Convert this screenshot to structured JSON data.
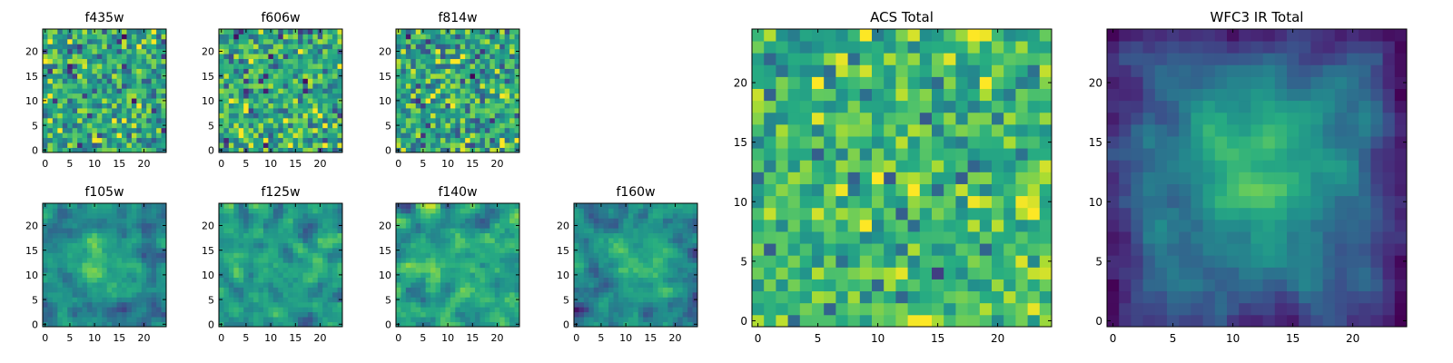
{
  "figure": {
    "colormap": "viridis",
    "palette": [
      "#440154",
      "#3b528b",
      "#21918c",
      "#5ec962",
      "#fde725"
    ],
    "background": "#ffffff",
    "axis_color": "#000000"
  },
  "chart_data": [
    {
      "id": "f435w",
      "type": "heatmap",
      "title": "f435w",
      "grid_size": 25,
      "xlim": [
        -0.5,
        24.5
      ],
      "ylim": [
        -0.5,
        24.5
      ],
      "xticks": [
        0,
        5,
        10,
        15,
        20
      ],
      "yticks": [
        0,
        5,
        10,
        15,
        20
      ],
      "xtick_labels": [
        "0",
        "5",
        "10",
        "15",
        "20"
      ],
      "ytick_labels": [
        "0",
        "5",
        "10",
        "15",
        "20"
      ],
      "pattern": "noise",
      "peak": null,
      "seed": 11
    },
    {
      "id": "f606w",
      "type": "heatmap",
      "title": "f606w",
      "grid_size": 25,
      "xlim": [
        -0.5,
        24.5
      ],
      "ylim": [
        -0.5,
        24.5
      ],
      "xticks": [
        0,
        5,
        10,
        15,
        20
      ],
      "yticks": [
        0,
        5,
        10,
        15,
        20
      ],
      "xtick_labels": [
        "0",
        "5",
        "10",
        "15",
        "20"
      ],
      "ytick_labels": [
        "0",
        "5",
        "10",
        "15",
        "20"
      ],
      "pattern": "noise",
      "peak": null,
      "seed": 23
    },
    {
      "id": "f814w",
      "type": "heatmap",
      "title": "f814w",
      "grid_size": 25,
      "xlim": [
        -0.5,
        24.5
      ],
      "ylim": [
        -0.5,
        24.5
      ],
      "xticks": [
        0,
        5,
        10,
        15,
        20
      ],
      "yticks": [
        0,
        5,
        10,
        15,
        20
      ],
      "xtick_labels": [
        "0",
        "5",
        "10",
        "15",
        "20"
      ],
      "ytick_labels": [
        "0",
        "5",
        "10",
        "15",
        "20"
      ],
      "pattern": "noise",
      "peak": null,
      "seed": 37
    },
    {
      "id": "f105w",
      "type": "heatmap",
      "title": "f105w",
      "grid_size": 25,
      "xlim": [
        -0.5,
        24.5
      ],
      "ylim": [
        -0.5,
        24.5
      ],
      "xticks": [
        0,
        5,
        10,
        15,
        20
      ],
      "yticks": [
        0,
        5,
        10,
        15,
        20
      ],
      "xtick_labels": [
        "0",
        "5",
        "10",
        "15",
        "20"
      ],
      "ytick_labels": [
        "0",
        "5",
        "10",
        "15",
        "20"
      ],
      "pattern": "smooth_source",
      "peak": [
        12,
        12
      ],
      "seed": 41
    },
    {
      "id": "f125w",
      "type": "heatmap",
      "title": "f125w",
      "grid_size": 25,
      "xlim": [
        -0.5,
        24.5
      ],
      "ylim": [
        -0.5,
        24.5
      ],
      "xticks": [
        0,
        5,
        10,
        15,
        20
      ],
      "yticks": [
        0,
        5,
        10,
        15,
        20
      ],
      "xtick_labels": [
        "0",
        "5",
        "10",
        "15",
        "20"
      ],
      "ytick_labels": [
        "0",
        "5",
        "10",
        "15",
        "20"
      ],
      "pattern": "smooth_noise",
      "peak": null,
      "seed": 53
    },
    {
      "id": "f140w",
      "type": "heatmap",
      "title": "f140w",
      "grid_size": 25,
      "xlim": [
        -0.5,
        24.5
      ],
      "ylim": [
        -0.5,
        24.5
      ],
      "xticks": [
        0,
        5,
        10,
        15,
        20
      ],
      "yticks": [
        0,
        5,
        10,
        15,
        20
      ],
      "xtick_labels": [
        "0",
        "5",
        "10",
        "15",
        "20"
      ],
      "ytick_labels": [
        "0",
        "5",
        "10",
        "15",
        "20"
      ],
      "pattern": "smooth_noise",
      "peak": null,
      "seed": 67
    },
    {
      "id": "f160w",
      "type": "heatmap",
      "title": "f160w",
      "grid_size": 25,
      "xlim": [
        -0.5,
        24.5
      ],
      "ylim": [
        -0.5,
        24.5
      ],
      "xticks": [
        0,
        5,
        10,
        15,
        20
      ],
      "yticks": [
        0,
        5,
        10,
        15,
        20
      ],
      "xtick_labels": [
        "0",
        "5",
        "10",
        "15",
        "20"
      ],
      "ytick_labels": [
        "0",
        "5",
        "10",
        "15",
        "20"
      ],
      "pattern": "smooth_source",
      "peak": [
        12,
        12
      ],
      "seed": 79
    },
    {
      "id": "acs_total",
      "type": "heatmap",
      "title": "ACS Total",
      "grid_size": 25,
      "xlim": [
        -0.5,
        24.5
      ],
      "ylim": [
        -0.5,
        24.5
      ],
      "xticks": [
        0,
        5,
        10,
        15,
        20
      ],
      "yticks": [
        0,
        5,
        10,
        15,
        20
      ],
      "xtick_labels": [
        "0",
        "5",
        "10",
        "15",
        "20"
      ],
      "ytick_labels": [
        "0",
        "5",
        "10",
        "15",
        "20"
      ],
      "pattern": "noise_bright",
      "peak": null,
      "seed": 97
    },
    {
      "id": "wfc3_ir_total",
      "type": "heatmap",
      "title": "WFC3 IR Total",
      "grid_size": 25,
      "xlim": [
        -0.5,
        24.5
      ],
      "ylim": [
        -0.5,
        24.5
      ],
      "xticks": [
        0,
        5,
        10,
        15,
        20
      ],
      "yticks": [
        0,
        5,
        10,
        15,
        20
      ],
      "xtick_labels": [
        "0",
        "5",
        "10",
        "15",
        "20"
      ],
      "ytick_labels": [
        "0",
        "5",
        "10",
        "15",
        "20"
      ],
      "pattern": "source",
      "peak": [
        12,
        13
      ],
      "seed": 113
    }
  ]
}
